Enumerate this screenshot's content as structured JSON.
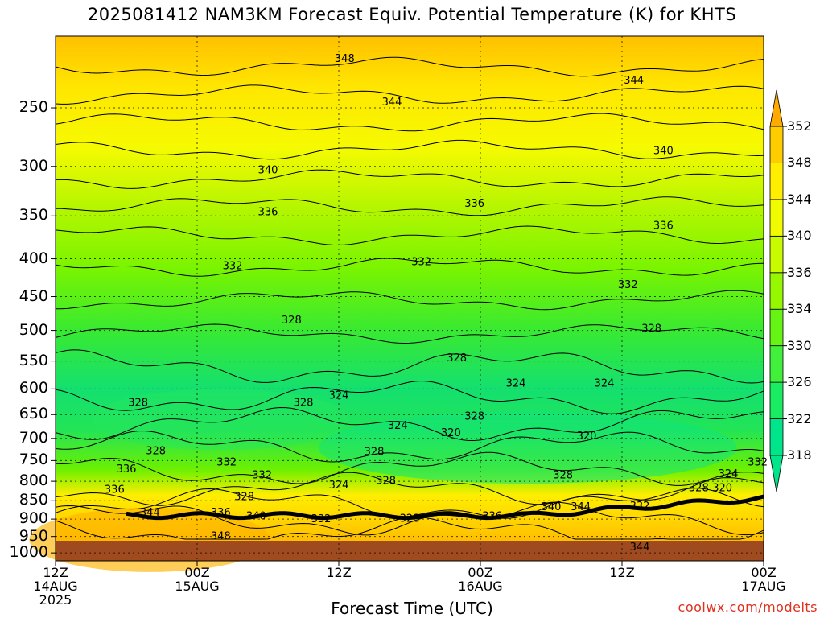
{
  "chart_data": {
    "type": "heatmap",
    "title": "2025081412 NAM3KM Forecast Equiv. Potential Temperature (K) for KHTS",
    "xlabel": "Forecast Time (UTC)",
    "ylabel": "",
    "y_ticks": [
      "250",
      "300",
      "350",
      "400",
      "450",
      "500",
      "550",
      "600",
      "650",
      "700",
      "750",
      "800",
      "850",
      "900",
      "950",
      "1000"
    ],
    "y_tick_values": [
      250,
      300,
      350,
      400,
      450,
      500,
      550,
      600,
      650,
      700,
      750,
      800,
      850,
      900,
      950,
      1000
    ],
    "ylim": [
      200,
      1025
    ],
    "y_scale": "log",
    "x_ticks": [
      {
        "line1": "12Z",
        "line2": "14AUG",
        "line3": "2025",
        "hour": 0
      },
      {
        "line1": "00Z",
        "line2": "15AUG",
        "line3": "",
        "hour": 12
      },
      {
        "line1": "12Z",
        "line2": "",
        "line3": "",
        "hour": 24
      },
      {
        "line1": "00Z",
        "line2": "16AUG",
        "line3": "",
        "hour": 36
      },
      {
        "line1": "12Z",
        "line2": "",
        "line3": "",
        "hour": 48
      },
      {
        "line1": "00Z",
        "line2": "17AUG",
        "line3": "",
        "hour": 60
      }
    ],
    "xlim": [
      0,
      60
    ],
    "grid": true,
    "colorbar": {
      "levels": [
        318,
        322,
        326,
        330,
        334,
        336,
        340,
        344,
        348,
        352
      ],
      "labels": [
        "318",
        "322",
        "326",
        "330",
        "334",
        "336",
        "340",
        "344",
        "348",
        "352"
      ],
      "colors": [
        "#00e58a",
        "#1aec62",
        "#40f03a",
        "#66f414",
        "#96f800",
        "#c8fa00",
        "#f0fa00",
        "#ffee00",
        "#ffcc00",
        "#ffaa00"
      ]
    },
    "ground_color": "#a04a20",
    "contour_labels": [
      {
        "text": "348",
        "hour": 24.5,
        "p": 214
      },
      {
        "text": "344",
        "hour": 49.0,
        "p": 229
      },
      {
        "text": "344",
        "hour": 28.5,
        "p": 245
      },
      {
        "text": "340",
        "hour": 51.5,
        "p": 285
      },
      {
        "text": "340",
        "hour": 18.0,
        "p": 303
      },
      {
        "text": "336",
        "hour": 35.5,
        "p": 336
      },
      {
        "text": "336",
        "hour": 18.0,
        "p": 345
      },
      {
        "text": "336",
        "hour": 51.5,
        "p": 360
      },
      {
        "text": "332",
        "hour": 15.0,
        "p": 408
      },
      {
        "text": "332",
        "hour": 31.0,
        "p": 403
      },
      {
        "text": "332",
        "hour": 48.5,
        "p": 433
      },
      {
        "text": "328",
        "hour": 20.0,
        "p": 483
      },
      {
        "text": "328",
        "hour": 50.5,
        "p": 496
      },
      {
        "text": "328",
        "hour": 34.0,
        "p": 544
      },
      {
        "text": "324",
        "hour": 39.0,
        "p": 588
      },
      {
        "text": "324",
        "hour": 46.5,
        "p": 588
      },
      {
        "text": "324",
        "hour": 24.0,
        "p": 611
      },
      {
        "text": "328",
        "hour": 7.0,
        "p": 625
      },
      {
        "text": "328",
        "hour": 21.0,
        "p": 625
      },
      {
        "text": "328",
        "hour": 35.5,
        "p": 652
      },
      {
        "text": "324",
        "hour": 29.0,
        "p": 671
      },
      {
        "text": "320",
        "hour": 33.5,
        "p": 686
      },
      {
        "text": "320",
        "hour": 45.0,
        "p": 693
      },
      {
        "text": "328",
        "hour": 8.5,
        "p": 726
      },
      {
        "text": "328",
        "hour": 27.0,
        "p": 728
      },
      {
        "text": "332",
        "hour": 14.5,
        "p": 752
      },
      {
        "text": "336",
        "hour": 6.0,
        "p": 768
      },
      {
        "text": "332",
        "hour": 17.5,
        "p": 783
      },
      {
        "text": "328",
        "hour": 43.0,
        "p": 783
      },
      {
        "text": "328",
        "hour": 28.0,
        "p": 797
      },
      {
        "text": "324",
        "hour": 24.0,
        "p": 808
      },
      {
        "text": "336",
        "hour": 5.0,
        "p": 819
      },
      {
        "text": "328",
        "hour": 16.0,
        "p": 838
      },
      {
        "text": "340",
        "hour": 42.0,
        "p": 864
      },
      {
        "text": "344",
        "hour": 44.5,
        "p": 864
      },
      {
        "text": "332",
        "hour": 49.5,
        "p": 862
      },
      {
        "text": "344",
        "hour": 8.0,
        "p": 880
      },
      {
        "text": "336",
        "hour": 14.0,
        "p": 880
      },
      {
        "text": "340",
        "hour": 17.0,
        "p": 890
      },
      {
        "text": "332",
        "hour": 22.5,
        "p": 898
      },
      {
        "text": "328",
        "hour": 30.0,
        "p": 896
      },
      {
        "text": "336",
        "hour": 37.0,
        "p": 890
      },
      {
        "text": "348",
        "hour": 14.0,
        "p": 947
      },
      {
        "text": "344",
        "hour": 49.5,
        "p": 980
      },
      {
        "text": "332",
        "hour": 59.5,
        "p": 752
      },
      {
        "text": "324",
        "hour": 57.0,
        "p": 780
      },
      {
        "text": "328",
        "hour": 54.5,
        "p": 815
      },
      {
        "text": "320",
        "hour": 56.5,
        "p": 815
      }
    ]
  },
  "credit": "coolwx.com/modelts"
}
